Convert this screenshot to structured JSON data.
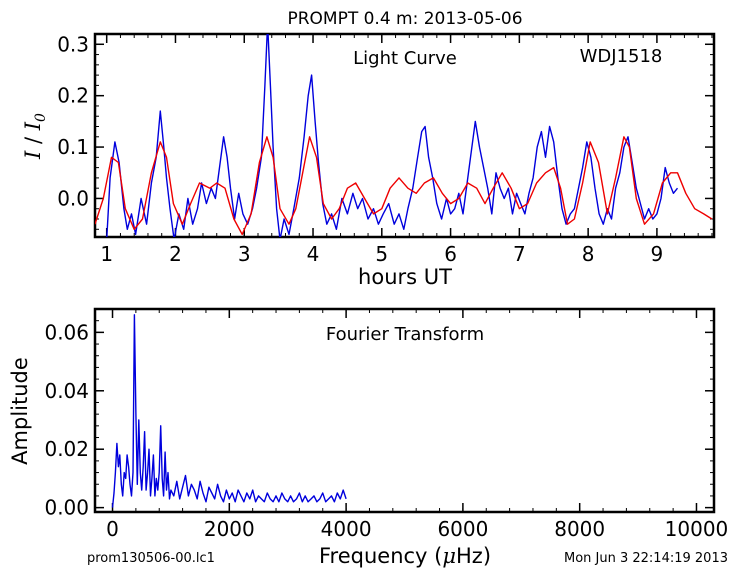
{
  "title": "PROMPT 0.4 m:  2013-05-06",
  "footer": {
    "left": "prom130506-00.lc1",
    "right": "Mon Jun  3 22:14:19 2013"
  },
  "colors": {
    "data": "#0000dd",
    "model": "#ee0000",
    "axis": "#000000"
  },
  "chart_data": [
    {
      "type": "line",
      "panel": "light_curve",
      "annotations": [
        "Light Curve",
        "WDJ1518"
      ],
      "xlabel": "hours UT",
      "ylabel_main": "I",
      "ylabel_sep": " / ",
      "ylabel_base": "I",
      "ylabel_sub": "0",
      "xlim": [
        0.83,
        9.83
      ],
      "ylim": [
        -0.075,
        0.32
      ],
      "xticks": [
        1,
        2,
        3,
        4,
        5,
        6,
        7,
        8,
        9
      ],
      "xtick_labels": [
        "1",
        "2",
        "3",
        "4",
        "5",
        "6",
        "7",
        "8",
        "9"
      ],
      "yticks": [
        0.0,
        0.1,
        0.2,
        0.3
      ],
      "ytick_labels": [
        "0.0",
        "0.1",
        "0.2",
        "0.3"
      ],
      "series": [
        {
          "style": "data",
          "x": [
            1.0,
            1.05,
            1.12,
            1.18,
            1.25,
            1.3,
            1.36,
            1.42,
            1.5,
            1.58,
            1.65,
            1.72,
            1.78,
            1.83,
            1.87,
            1.92,
            1.98,
            2.05,
            2.12,
            2.18,
            2.25,
            2.32,
            2.38,
            2.45,
            2.52,
            2.58,
            2.64,
            2.7,
            2.75,
            2.8,
            2.86,
            2.92,
            2.98,
            3.05,
            3.12,
            3.18,
            3.25,
            3.3,
            3.34,
            3.38,
            3.42,
            3.47,
            3.52,
            3.58,
            3.65,
            3.72,
            3.8,
            3.87,
            3.93,
            3.98,
            4.03,
            4.08,
            4.14,
            4.2,
            4.27,
            4.34,
            4.42,
            4.5,
            4.58,
            4.65,
            4.72,
            4.8,
            4.88,
            4.95,
            5.02,
            5.1,
            5.18,
            5.25,
            5.32,
            5.38,
            5.45,
            5.52,
            5.58,
            5.63,
            5.68,
            5.74,
            5.8,
            5.87,
            5.94,
            6.0,
            6.06,
            6.12,
            6.18,
            6.24,
            6.3,
            6.36,
            6.42,
            6.48,
            6.54,
            6.6,
            6.66,
            6.72,
            6.78,
            6.84,
            6.9,
            6.96,
            7.02,
            7.08,
            7.14,
            7.2,
            7.26,
            7.32,
            7.38,
            7.44,
            7.5,
            7.56,
            7.62,
            7.68,
            7.74,
            7.8,
            7.86,
            7.92,
            7.98,
            8.04,
            8.1,
            8.16,
            8.22,
            8.28,
            8.34,
            8.4,
            8.46,
            8.52,
            8.58,
            8.64,
            8.7,
            8.76,
            8.82,
            8.88,
            8.94,
            9.0,
            9.06,
            9.12,
            9.18,
            9.24,
            9.3
          ],
          "y": [
            -0.08,
            0.04,
            0.11,
            0.07,
            -0.02,
            -0.06,
            -0.03,
            -0.07,
            0.0,
            -0.05,
            0.03,
            0.08,
            0.17,
            0.1,
            0.04,
            -0.02,
            -0.08,
            -0.03,
            -0.06,
            0.0,
            -0.05,
            -0.02,
            0.03,
            -0.01,
            0.02,
            0.0,
            0.06,
            0.12,
            0.08,
            0.02,
            -0.04,
            0.01,
            -0.03,
            -0.05,
            -0.02,
            0.02,
            0.08,
            0.22,
            0.34,
            0.22,
            0.1,
            -0.02,
            -0.08,
            -0.04,
            -0.07,
            -0.02,
            0.04,
            0.12,
            0.2,
            0.24,
            0.15,
            0.07,
            -0.01,
            -0.05,
            -0.03,
            -0.06,
            0.0,
            -0.03,
            0.01,
            -0.02,
            0.0,
            -0.04,
            -0.02,
            -0.05,
            -0.03,
            -0.01,
            -0.05,
            -0.03,
            -0.06,
            -0.02,
            0.02,
            0.08,
            0.13,
            0.14,
            0.08,
            0.04,
            -0.01,
            -0.04,
            0.0,
            -0.03,
            -0.02,
            0.01,
            -0.03,
            0.03,
            0.09,
            0.15,
            0.1,
            0.06,
            0.02,
            -0.03,
            0.05,
            0.02,
            0.0,
            0.02,
            -0.03,
            0.01,
            -0.01,
            -0.03,
            0.01,
            0.04,
            0.1,
            0.13,
            0.08,
            0.14,
            0.11,
            0.04,
            -0.02,
            -0.05,
            -0.03,
            -0.02,
            0.02,
            0.06,
            0.11,
            0.08,
            0.02,
            -0.03,
            -0.05,
            -0.02,
            -0.04,
            0.02,
            0.05,
            0.1,
            0.12,
            0.07,
            0.02,
            -0.01,
            -0.04,
            -0.02,
            -0.04,
            -0.03,
            0.0,
            0.06,
            0.03,
            0.01,
            0.02
          ]
        },
        {
          "style": "model",
          "x": [
            0.83,
            0.95,
            1.07,
            1.17,
            1.27,
            1.4,
            1.52,
            1.65,
            1.78,
            1.87,
            1.97,
            2.1,
            2.22,
            2.35,
            2.5,
            2.6,
            2.72,
            2.85,
            2.97,
            3.1,
            3.22,
            3.33,
            3.42,
            3.52,
            3.65,
            3.75,
            3.85,
            3.95,
            4.05,
            4.15,
            4.27,
            4.38,
            4.5,
            4.62,
            4.75,
            4.88,
            5.0,
            5.12,
            5.25,
            5.38,
            5.5,
            5.62,
            5.75,
            5.88,
            6.0,
            6.12,
            6.25,
            6.38,
            6.5,
            6.62,
            6.75,
            6.88,
            7.0,
            7.12,
            7.25,
            7.38,
            7.5,
            7.6,
            7.7,
            7.8,
            7.92,
            8.03,
            8.15,
            8.28,
            8.4,
            8.52,
            8.6,
            8.7,
            8.82,
            8.95,
            9.08,
            9.2,
            9.3,
            9.42,
            9.55,
            9.68,
            9.8
          ],
          "y": [
            -0.05,
            0.0,
            0.08,
            0.07,
            -0.02,
            -0.06,
            -0.04,
            0.05,
            0.11,
            0.08,
            -0.01,
            -0.05,
            -0.01,
            0.03,
            0.02,
            0.03,
            0.02,
            -0.04,
            -0.07,
            -0.03,
            0.07,
            0.12,
            0.08,
            -0.02,
            -0.05,
            -0.02,
            0.05,
            0.12,
            0.08,
            -0.01,
            -0.04,
            -0.02,
            0.02,
            0.03,
            0.0,
            -0.03,
            -0.02,
            0.02,
            0.04,
            0.02,
            0.01,
            0.03,
            0.04,
            0.01,
            -0.01,
            0.0,
            0.03,
            0.02,
            -0.01,
            0.02,
            0.05,
            0.02,
            -0.02,
            -0.01,
            0.03,
            0.05,
            0.06,
            0.02,
            -0.05,
            -0.04,
            0.03,
            0.11,
            0.07,
            -0.03,
            0.04,
            0.12,
            0.1,
            0.0,
            -0.05,
            -0.03,
            0.03,
            0.05,
            0.05,
            0.01,
            -0.02,
            -0.03,
            -0.04
          ]
        }
      ]
    },
    {
      "type": "line",
      "panel": "fourier",
      "annotations": [
        "Fourier Transform"
      ],
      "xlabel_pre": "Frequency (",
      "xlabel_mu": "μ",
      "xlabel_post": "Hz)",
      "ylabel": "Amplitude",
      "xlim": [
        -300,
        10300
      ],
      "ylim": [
        -0.0015,
        0.068
      ],
      "xticks": [
        0,
        2000,
        4000,
        6000,
        8000,
        10000
      ],
      "xtick_labels": [
        "0",
        "2000",
        "4000",
        "6000",
        "8000",
        "10000"
      ],
      "yticks": [
        0.0,
        0.02,
        0.04,
        0.06
      ],
      "ytick_labels": [
        "0.00",
        "0.02",
        "0.04",
        "0.06"
      ],
      "series": [
        {
          "style": "data",
          "x": [
            0,
            25,
            50,
            75,
            100,
            125,
            150,
            175,
            200,
            225,
            250,
            275,
            300,
            325,
            350,
            375,
            400,
            425,
            450,
            475,
            500,
            525,
            550,
            575,
            600,
            625,
            650,
            675,
            700,
            725,
            750,
            775,
            800,
            825,
            850,
            875,
            900,
            925,
            950,
            975,
            1000,
            1050,
            1100,
            1150,
            1200,
            1250,
            1300,
            1350,
            1400,
            1450,
            1500,
            1550,
            1600,
            1650,
            1700,
            1750,
            1800,
            1850,
            1900,
            1950,
            2000,
            2050,
            2100,
            2150,
            2200,
            2250,
            2300,
            2350,
            2400,
            2450,
            2500,
            2550,
            2600,
            2650,
            2700,
            2750,
            2800,
            2850,
            2900,
            2950,
            3000,
            3050,
            3100,
            3150,
            3200,
            3250,
            3300,
            3350,
            3400,
            3450,
            3500,
            3550,
            3600,
            3650,
            3700,
            3750,
            3800,
            3850,
            3900,
            3950,
            4000
          ],
          "y": [
            0.0,
            0.005,
            0.012,
            0.022,
            0.014,
            0.018,
            0.008,
            0.004,
            0.012,
            0.01,
            0.018,
            0.014,
            0.008,
            0.004,
            0.012,
            0.066,
            0.032,
            0.008,
            0.03,
            0.012,
            0.006,
            0.014,
            0.026,
            0.006,
            0.012,
            0.02,
            0.004,
            0.01,
            0.018,
            0.004,
            0.01,
            0.006,
            0.012,
            0.028,
            0.01,
            0.004,
            0.019,
            0.006,
            0.012,
            0.003,
            0.006,
            0.004,
            0.009,
            0.003,
            0.007,
            0.011,
            0.004,
            0.008,
            0.006,
            0.003,
            0.009,
            0.005,
            0.002,
            0.007,
            0.005,
            0.003,
            0.008,
            0.004,
            0.002,
            0.006,
            0.003,
            0.005,
            0.002,
            0.006,
            0.004,
            0.002,
            0.005,
            0.003,
            0.006,
            0.002,
            0.004,
            0.003,
            0.002,
            0.005,
            0.003,
            0.002,
            0.004,
            0.002,
            0.005,
            0.003,
            0.002,
            0.004,
            0.002,
            0.003,
            0.005,
            0.002,
            0.004,
            0.002,
            0.003,
            0.004,
            0.002,
            0.003,
            0.005,
            0.002,
            0.003,
            0.004,
            0.002,
            0.005,
            0.003,
            0.006,
            0.003
          ]
        }
      ]
    }
  ]
}
